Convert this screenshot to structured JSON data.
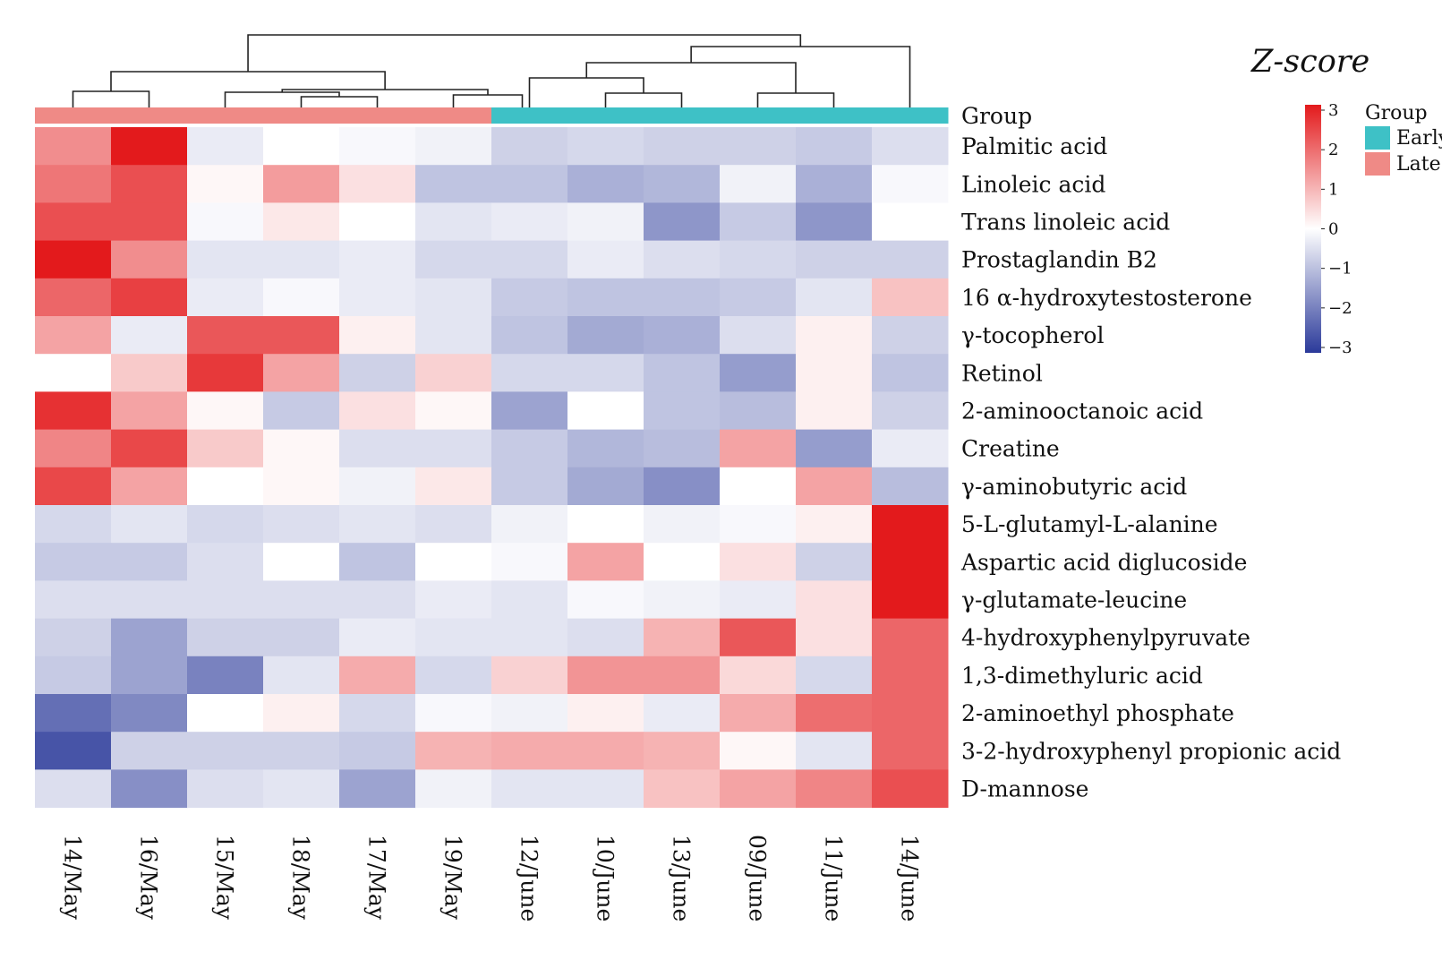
{
  "chart_data": {
    "type": "heatmap",
    "columns": [
      "14/May",
      "16/May",
      "15/May",
      "18/May",
      "17/May",
      "19/May",
      "12/June",
      "10/June",
      "13/June",
      "09/June",
      "11/June",
      "14/June"
    ],
    "column_groups": [
      "Late",
      "Late",
      "Late",
      "Late",
      "Late",
      "Late",
      "Early",
      "Early",
      "Early",
      "Early",
      "Early",
      "Early"
    ],
    "group_annotation_label": "Group",
    "rows": [
      "Palmitic acid",
      "Linoleic acid",
      "Trans linoleic acid",
      "Prostaglandin B2",
      "16 α-hydroxytestosterone",
      "γ-tocopherol",
      "Retinol",
      "2-aminooctanoic acid",
      "Creatine",
      "γ-aminobutyric acid",
      "5-L-glutamyl-L-alanine",
      "Aspartic acid diglucoside",
      "γ-glutamate-leucine",
      "4-hydroxyphenylpyruvate",
      "1,3-dimethyluric acid",
      "2-aminoethyl phosphate",
      "3-2-hydroxyphenyl propionic acid",
      "D-mannose"
    ],
    "values": [
      [
        1.5,
        3.0,
        -0.3,
        0.0,
        -0.1,
        -0.2,
        -0.7,
        -0.6,
        -0.7,
        -0.7,
        -0.8,
        -0.5
      ],
      [
        1.8,
        2.3,
        0.1,
        1.3,
        0.4,
        -0.9,
        -0.9,
        -1.2,
        -1.1,
        -0.2,
        -1.2,
        -0.1
      ],
      [
        2.3,
        2.3,
        -0.1,
        0.3,
        0.0,
        -0.4,
        -0.3,
        -0.2,
        -1.6,
        -0.8,
        -1.6,
        0.0
      ],
      [
        3.0,
        1.5,
        -0.4,
        -0.4,
        -0.3,
        -0.6,
        -0.6,
        -0.3,
        -0.5,
        -0.6,
        -0.7,
        -0.7
      ],
      [
        2.0,
        2.5,
        -0.3,
        -0.1,
        -0.3,
        -0.4,
        -0.8,
        -0.9,
        -0.9,
        -0.8,
        -0.4,
        0.8
      ],
      [
        1.2,
        -0.3,
        2.2,
        2.2,
        0.2,
        -0.4,
        -0.9,
        -1.3,
        -1.2,
        -0.5,
        0.2,
        -0.7
      ],
      [
        0.0,
        0.7,
        2.6,
        1.2,
        -0.7,
        0.6,
        -0.6,
        -0.6,
        -0.9,
        -1.5,
        0.2,
        -0.9
      ],
      [
        2.7,
        1.2,
        0.1,
        -0.8,
        0.4,
        0.1,
        -1.4,
        0.0,
        -0.9,
        -1.0,
        0.2,
        -0.7
      ],
      [
        1.6,
        2.4,
        0.7,
        0.1,
        -0.5,
        -0.5,
        -0.8,
        -1.1,
        -1.0,
        1.2,
        -1.5,
        -0.3
      ],
      [
        2.4,
        1.2,
        0.0,
        0.1,
        -0.2,
        0.3,
        -0.8,
        -1.3,
        -1.7,
        0.0,
        1.2,
        -1.0
      ],
      [
        -0.6,
        -0.4,
        -0.6,
        -0.5,
        -0.4,
        -0.5,
        -0.2,
        0.0,
        -0.2,
        -0.1,
        0.2,
        3.0
      ],
      [
        -0.8,
        -0.8,
        -0.5,
        0.0,
        -0.9,
        0.0,
        -0.1,
        1.2,
        0.0,
        0.4,
        -0.7,
        3.0
      ],
      [
        -0.5,
        -0.5,
        -0.5,
        -0.5,
        -0.5,
        -0.3,
        -0.4,
        -0.1,
        -0.2,
        -0.3,
        0.4,
        3.0
      ],
      [
        -0.7,
        -1.4,
        -0.7,
        -0.7,
        -0.3,
        -0.4,
        -0.4,
        -0.5,
        1.0,
        2.2,
        0.4,
        2.0
      ],
      [
        -0.8,
        -1.4,
        -1.9,
        -0.4,
        1.1,
        -0.6,
        0.6,
        1.4,
        1.4,
        0.5,
        -0.6,
        2.0
      ],
      [
        -2.2,
        -1.8,
        0.0,
        0.2,
        -0.6,
        -0.1,
        -0.2,
        0.2,
        -0.3,
        1.1,
        1.9,
        2.0
      ],
      [
        -2.6,
        -0.7,
        -0.7,
        -0.7,
        -0.8,
        1.0,
        1.1,
        1.1,
        1.0,
        0.1,
        -0.4,
        2.0
      ],
      [
        -0.5,
        -1.7,
        -0.5,
        -0.4,
        -1.4,
        -0.2,
        -0.4,
        -0.4,
        0.8,
        1.2,
        1.6,
        2.3
      ]
    ],
    "colorbar": {
      "title": "Z-score",
      "range": [
        -3,
        3
      ],
      "ticks": [
        "3",
        "2",
        "1",
        "0",
        "−1",
        "−2",
        "−3"
      ],
      "colors": {
        "high": "#e31a1c",
        "mid": "#ffffff",
        "low": "#2b3a9a"
      }
    },
    "group_legend": {
      "title": "Group",
      "items": [
        {
          "name": "Early",
          "color": "#3ec1c6"
        },
        {
          "name": "Late",
          "color": "#ef8a86"
        }
      ]
    },
    "column_dendrogram": true,
    "grid": false
  }
}
